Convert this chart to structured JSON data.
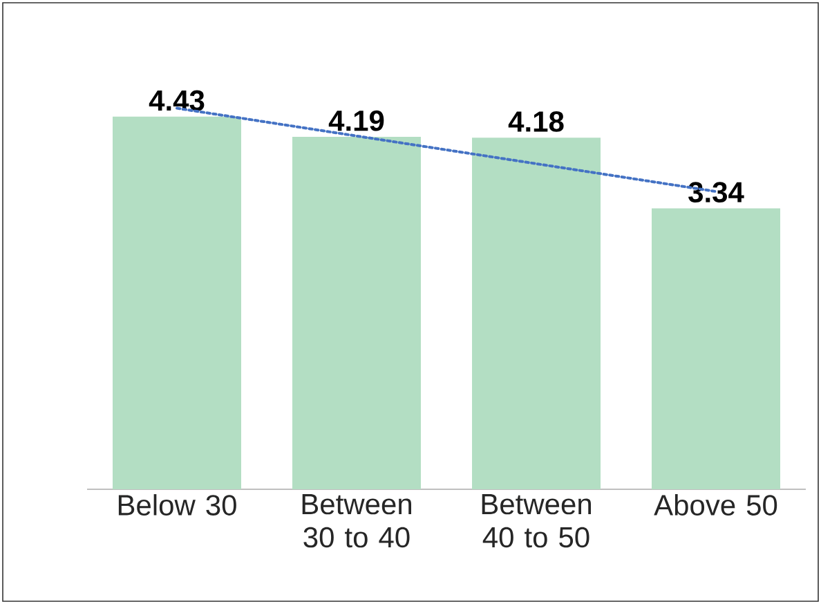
{
  "chart_data": {
    "type": "bar",
    "categories": [
      "Below 30",
      "Between 30 to 40",
      "Between 40 to 50",
      "Above 50"
    ],
    "series": [
      {
        "color": "#b3dec3",
        "values": [
          4.43,
          4.19,
          4.18,
          3.34
        ],
        "value_labels": [
          "4.43",
          "4.19",
          "4.18",
          "3.34"
        ]
      },
      {
        "type": "line",
        "color": "#4472c4",
        "line_style": "dotted",
        "values": [
          4.53,
          4.2,
          3.87,
          3.54
        ]
      }
    ]
  }
}
